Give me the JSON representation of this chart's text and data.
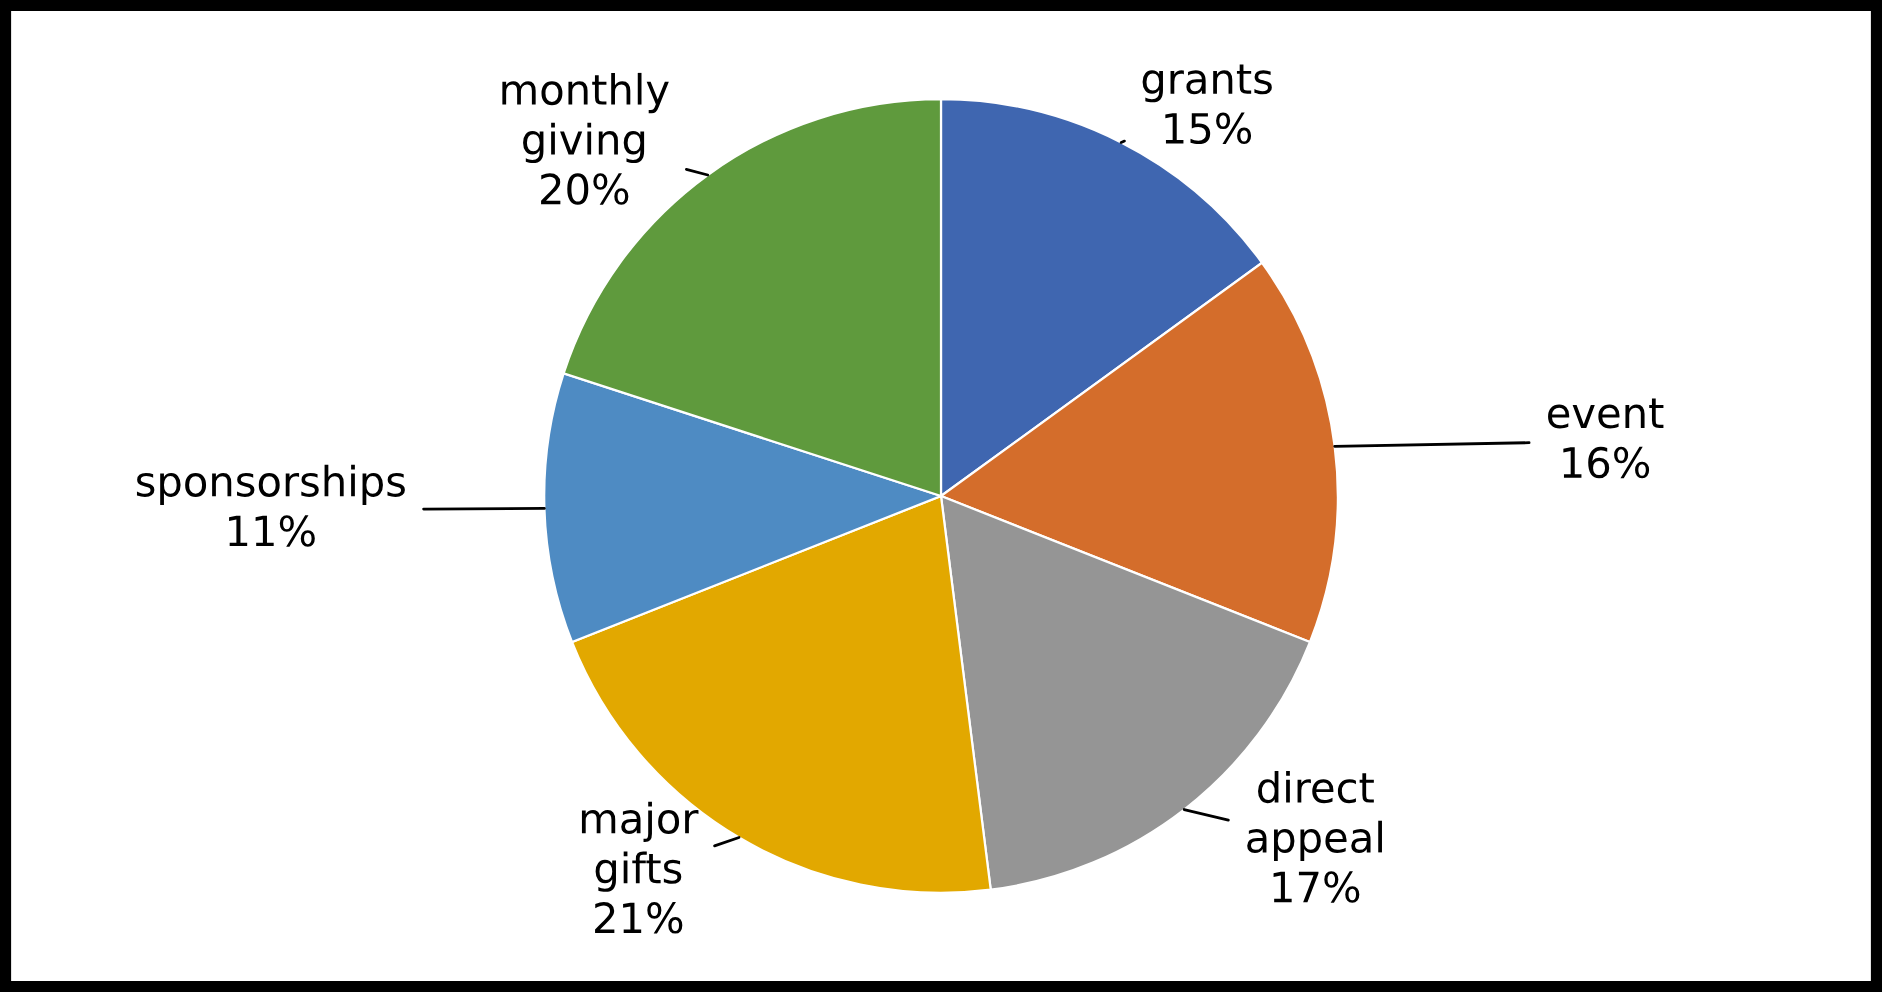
{
  "chart_data": {
    "type": "pie",
    "categories": [
      "grants",
      "event",
      "direct appeal",
      "major gifts",
      "sponsorships",
      "monthly giving"
    ],
    "values": [
      15,
      16,
      17,
      21,
      11,
      20
    ],
    "value_labels": [
      "15%",
      "16%",
      "17%",
      "21%",
      "11%",
      "20%"
    ],
    "colors": [
      "#3f66b0",
      "#d46d2b",
      "#959595",
      "#e2a800",
      "#4e8bc3",
      "#5f9a3d"
    ],
    "legend": false
  }
}
